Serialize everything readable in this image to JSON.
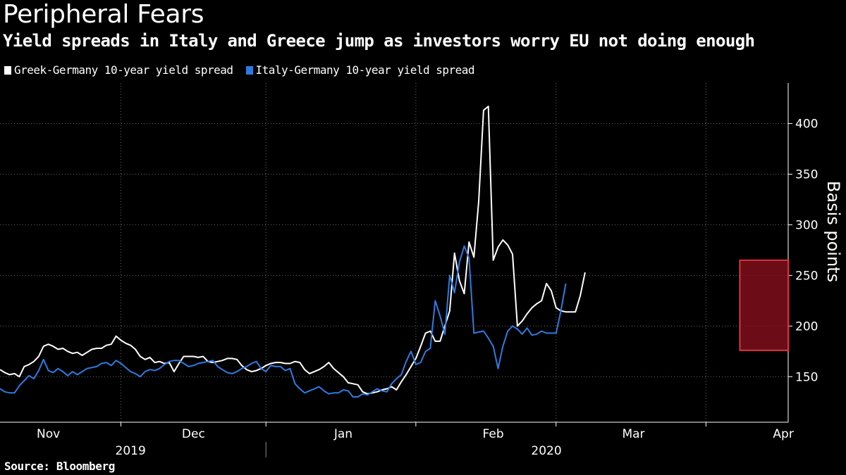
{
  "title": "Peripheral Fears",
  "subtitle": "Yield spreads in Italy and Greece jump as investors worry EU not doing enough",
  "source": "Source: Bloomberg",
  "colors": {
    "background": "#000000",
    "greece": "#ffffff",
    "italy": "#2e7be0",
    "highlight_fill": "#8b0f1e",
    "highlight_stroke": "#e0323f"
  },
  "chart_data": {
    "type": "line",
    "title": "Peripheral Fears",
    "subtitle": "Yield spreads in Italy and Greece jump as investors worry EU not doing enough",
    "ylabel": "Basis points",
    "ylim": [
      105,
      440
    ],
    "yticks": [
      150,
      200,
      250,
      300,
      350,
      400
    ],
    "x_unit": "days since 2019-10-22",
    "xlim": [
      0,
      163
    ],
    "month_ticks": [
      {
        "label": "Nov",
        "x": 10,
        "boundary": 25
      },
      {
        "label": "Dec",
        "x": 40,
        "boundary": 55
      },
      {
        "label": "Jan",
        "x": 71,
        "boundary": 86
      },
      {
        "label": "Feb",
        "x": 102,
        "boundary": 115
      },
      {
        "label": "Mar",
        "x": 131,
        "boundary": 146
      },
      {
        "label": "Apr",
        "x": 162,
        "boundary": null
      }
    ],
    "year_labels": [
      {
        "label": "2019",
        "x": 27
      },
      {
        "label": "2020",
        "x": 113
      }
    ],
    "year_divider_x": 55,
    "highlight": {
      "x_start": 153,
      "x_end": 163,
      "y_start": 176,
      "y_end": 265
    },
    "series": [
      {
        "name": "Greek-Germany 10-year yield spread",
        "color": "#ffffff",
        "points": [
          [
            0,
            157
          ],
          [
            1,
            154
          ],
          [
            2,
            152
          ],
          [
            3,
            153
          ],
          [
            4,
            150
          ],
          [
            5,
            160
          ],
          [
            6,
            162
          ],
          [
            7,
            165
          ],
          [
            8,
            170
          ],
          [
            9,
            180
          ],
          [
            10,
            182
          ],
          [
            11,
            180
          ],
          [
            12,
            177
          ],
          [
            13,
            178
          ],
          [
            14,
            175
          ],
          [
            15,
            173
          ],
          [
            16,
            174
          ],
          [
            17,
            171
          ],
          [
            18,
            174
          ],
          [
            19,
            177
          ],
          [
            20,
            178
          ],
          [
            21,
            178
          ],
          [
            22,
            181
          ],
          [
            23,
            182
          ],
          [
            24,
            190
          ],
          [
            25,
            186
          ],
          [
            26,
            183
          ],
          [
            27,
            181
          ],
          [
            28,
            177
          ],
          [
            29,
            170
          ],
          [
            30,
            167
          ],
          [
            31,
            169
          ],
          [
            32,
            164
          ],
          [
            33,
            165
          ],
          [
            34,
            163
          ],
          [
            35,
            164
          ],
          [
            36,
            155
          ],
          [
            37,
            163
          ],
          [
            38,
            170
          ],
          [
            39,
            170
          ],
          [
            40,
            170
          ],
          [
            41,
            169
          ],
          [
            42,
            170
          ],
          [
            43,
            165
          ],
          [
            44,
            164
          ],
          [
            45,
            165
          ],
          [
            46,
            166
          ],
          [
            47,
            168
          ],
          [
            48,
            168
          ],
          [
            49,
            167
          ],
          [
            50,
            161
          ],
          [
            51,
            157
          ],
          [
            52,
            155
          ],
          [
            53,
            156
          ],
          [
            54,
            158
          ],
          [
            55,
            161
          ],
          [
            56,
            163
          ],
          [
            57,
            164
          ],
          [
            58,
            164
          ],
          [
            59,
            163
          ],
          [
            60,
            163
          ],
          [
            61,
            165
          ],
          [
            62,
            164
          ],
          [
            63,
            157
          ],
          [
            64,
            153
          ],
          [
            65,
            155
          ],
          [
            66,
            157
          ],
          [
            67,
            160
          ],
          [
            68,
            164
          ],
          [
            69,
            158
          ],
          [
            70,
            154
          ],
          [
            71,
            150
          ],
          [
            72,
            144
          ],
          [
            73,
            143
          ],
          [
            74,
            142
          ],
          [
            75,
            135
          ],
          [
            76,
            133
          ],
          [
            77,
            134
          ],
          [
            78,
            135
          ],
          [
            79,
            137
          ],
          [
            80,
            138
          ],
          [
            81,
            140
          ],
          [
            82,
            137
          ],
          [
            83,
            145
          ],
          [
            84,
            152
          ],
          [
            85,
            160
          ],
          [
            86,
            168
          ],
          [
            87,
            180
          ],
          [
            88,
            193
          ],
          [
            89,
            195
          ],
          [
            90,
            185
          ],
          [
            91,
            185
          ],
          [
            92,
            200
          ],
          [
            93,
            215
          ],
          [
            94,
            272
          ],
          [
            95,
            245
          ],
          [
            96,
            232
          ],
          [
            97,
            283
          ],
          [
            98,
            268
          ],
          [
            99,
            323
          ],
          [
            100,
            413
          ],
          [
            101,
            417
          ],
          [
            102,
            265
          ],
          [
            103,
            278
          ],
          [
            104,
            285
          ],
          [
            105,
            280
          ],
          [
            106,
            271
          ],
          [
            107,
            200
          ],
          [
            108,
            205
          ],
          [
            109,
            212
          ],
          [
            110,
            218
          ],
          [
            111,
            222
          ],
          [
            112,
            225
          ],
          [
            113,
            242
          ],
          [
            114,
            235
          ],
          [
            115,
            218
          ],
          [
            116,
            215
          ],
          [
            117,
            214
          ],
          [
            118,
            214
          ],
          [
            119,
            214
          ],
          [
            120,
            230
          ],
          [
            121,
            253
          ]
        ]
      },
      {
        "name": "Italy-Germany 10-year yield spread",
        "color": "#2e7be0",
        "points": [
          [
            0,
            138
          ],
          [
            1,
            135
          ],
          [
            2,
            134
          ],
          [
            3,
            134
          ],
          [
            4,
            141
          ],
          [
            5,
            146
          ],
          [
            6,
            151
          ],
          [
            7,
            148
          ],
          [
            8,
            156
          ],
          [
            9,
            167
          ],
          [
            10,
            156
          ],
          [
            11,
            154
          ],
          [
            12,
            158
          ],
          [
            13,
            155
          ],
          [
            14,
            151
          ],
          [
            15,
            155
          ],
          [
            16,
            152
          ],
          [
            17,
            155
          ],
          [
            18,
            158
          ],
          [
            19,
            159
          ],
          [
            20,
            160
          ],
          [
            21,
            163
          ],
          [
            22,
            164
          ],
          [
            23,
            161
          ],
          [
            24,
            166
          ],
          [
            25,
            163
          ],
          [
            26,
            159
          ],
          [
            27,
            155
          ],
          [
            28,
            153
          ],
          [
            29,
            150
          ],
          [
            30,
            155
          ],
          [
            31,
            157
          ],
          [
            32,
            156
          ],
          [
            33,
            158
          ],
          [
            34,
            162
          ],
          [
            35,
            165
          ],
          [
            36,
            166
          ],
          [
            37,
            166
          ],
          [
            38,
            163
          ],
          [
            39,
            160
          ],
          [
            40,
            161
          ],
          [
            41,
            163
          ],
          [
            42,
            164
          ],
          [
            43,
            165
          ],
          [
            44,
            166
          ],
          [
            45,
            160
          ],
          [
            46,
            157
          ],
          [
            47,
            154
          ],
          [
            48,
            153
          ],
          [
            49,
            155
          ],
          [
            50,
            158
          ],
          [
            51,
            160
          ],
          [
            52,
            163
          ],
          [
            53,
            165
          ],
          [
            54,
            158
          ],
          [
            55,
            155
          ],
          [
            56,
            161
          ],
          [
            57,
            160
          ],
          [
            58,
            160
          ],
          [
            59,
            156
          ],
          [
            60,
            158
          ],
          [
            61,
            143
          ],
          [
            62,
            138
          ],
          [
            63,
            134
          ],
          [
            64,
            136
          ],
          [
            65,
            138
          ],
          [
            66,
            140
          ],
          [
            67,
            136
          ],
          [
            68,
            133
          ],
          [
            69,
            134
          ],
          [
            70,
            134
          ],
          [
            71,
            137
          ],
          [
            72,
            136
          ],
          [
            73,
            130
          ],
          [
            74,
            130
          ],
          [
            75,
            133
          ],
          [
            76,
            132
          ],
          [
            77,
            135
          ],
          [
            78,
            138
          ],
          [
            79,
            136
          ],
          [
            80,
            135
          ],
          [
            81,
            143
          ],
          [
            82,
            148
          ],
          [
            83,
            152
          ],
          [
            84,
            165
          ],
          [
            85,
            175
          ],
          [
            86,
            162
          ],
          [
            87,
            164
          ],
          [
            88,
            175
          ],
          [
            89,
            178
          ],
          [
            90,
            225
          ],
          [
            91,
            210
          ],
          [
            92,
            192
          ],
          [
            93,
            250
          ],
          [
            94,
            233
          ],
          [
            95,
            263
          ],
          [
            96,
            279
          ],
          [
            97,
            267
          ],
          [
            98,
            193
          ],
          [
            99,
            194
          ],
          [
            100,
            195
          ],
          [
            101,
            188
          ],
          [
            102,
            180
          ],
          [
            103,
            158
          ],
          [
            104,
            180
          ],
          [
            105,
            195
          ],
          [
            106,
            200
          ],
          [
            107,
            197
          ],
          [
            108,
            192
          ],
          [
            109,
            198
          ],
          [
            110,
            191
          ],
          [
            111,
            192
          ],
          [
            112,
            195
          ],
          [
            113,
            193
          ],
          [
            114,
            193
          ],
          [
            115,
            193
          ],
          [
            116,
            215
          ],
          [
            117,
            242
          ]
        ]
      }
    ]
  }
}
